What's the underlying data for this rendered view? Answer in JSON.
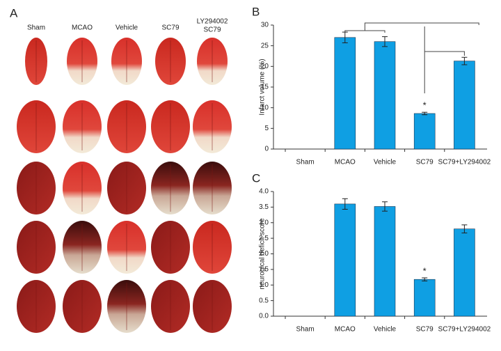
{
  "panel_a": {
    "label": "A",
    "columns": [
      [
        "Sham"
      ],
      [
        "MCAO"
      ],
      [
        "Vehicle"
      ],
      [
        "SC79"
      ],
      [
        "LY294002",
        "SC79"
      ]
    ]
  },
  "chart_data": [
    {
      "type": "bar",
      "panel_label": "B",
      "y_label": "Infarct volume (%)",
      "categories": [
        "Sham",
        "MCAO",
        "Vehicle",
        "SC79",
        "SC79+LY294002"
      ],
      "values": [
        0,
        27,
        26,
        8.6,
        21.3
      ],
      "errors": [
        0,
        1.3,
        1.2,
        0.3,
        0.9
      ],
      "color": "#0f9fe3",
      "ylim": [
        0,
        30
      ],
      "yticks": [
        0,
        5,
        10,
        15,
        20,
        25,
        30
      ],
      "annotation": "*"
    },
    {
      "type": "bar",
      "panel_label": "C",
      "y_label": "neurogical deficit score",
      "categories": [
        "Sham",
        "MCAO",
        "Vehicle",
        "SC79",
        "SC79+LY294002"
      ],
      "values": [
        0,
        3.6,
        3.52,
        1.18,
        2.8
      ],
      "errors": [
        0,
        0.17,
        0.15,
        0.05,
        0.13
      ],
      "color": "#0f9fe3",
      "ylim": [
        0,
        4
      ],
      "yticks": [
        {
          "value": 0,
          "label": "0.0"
        },
        0.5,
        {
          "value": 1,
          "label": "1.0"
        },
        1.5,
        {
          "value": 2,
          "label": "2.0"
        },
        2.5,
        {
          "value": 3,
          "label": "3.0"
        },
        3.5,
        {
          "value": 4,
          "label": "4.0"
        }
      ],
      "annotation": "*"
    }
  ]
}
